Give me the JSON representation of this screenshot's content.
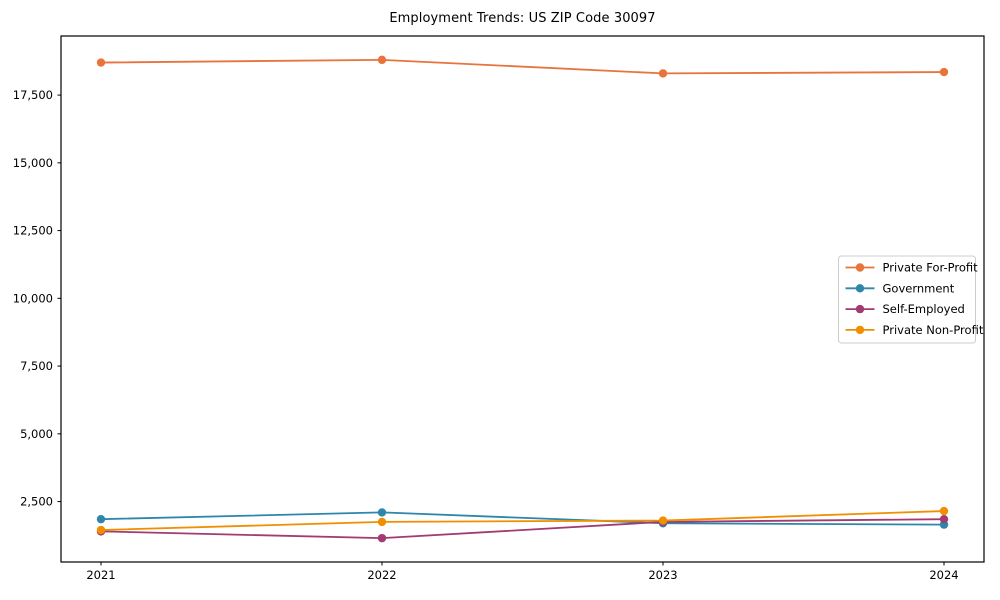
{
  "figure": {
    "background": "#ffffff",
    "axis_color": "#000000",
    "text_color": "#000000"
  },
  "chart_data": {
    "type": "line",
    "title": "Employment Trends: US ZIP Code 30097",
    "categories": [
      "2021",
      "2022",
      "2023",
      "2024"
    ],
    "series": [
      {
        "name": "Private For-Profit",
        "color": "#E8743B",
        "values": [
          18700,
          18800,
          18300,
          18350
        ]
      },
      {
        "name": "Government",
        "color": "#2E86AB",
        "values": [
          1850,
          2100,
          1700,
          1650
        ]
      },
      {
        "name": "Self-Employed",
        "color": "#A23B72",
        "values": [
          1400,
          1150,
          1750,
          1850
        ]
      },
      {
        "name": "Private Non-Profit",
        "color": "#F18F01",
        "values": [
          1450,
          1750,
          1800,
          2150
        ]
      }
    ],
    "xlabel": "",
    "ylabel": "",
    "ylim": [
      270,
      19680
    ],
    "yticks": [
      2500,
      5000,
      7500,
      10000,
      12500,
      15000,
      17500
    ],
    "ytick_labels": [
      "2,500",
      "5,000",
      "7,500",
      "10,000",
      "12,500",
      "15,000",
      "17,500"
    ],
    "grid": false,
    "legend": {
      "position": "center right",
      "entries": [
        "Private For-Profit",
        "Government",
        "Self-Employed",
        "Private Non-Profit"
      ]
    },
    "marker": "circle",
    "line_width": 1.8,
    "marker_radius": 4.2
  }
}
